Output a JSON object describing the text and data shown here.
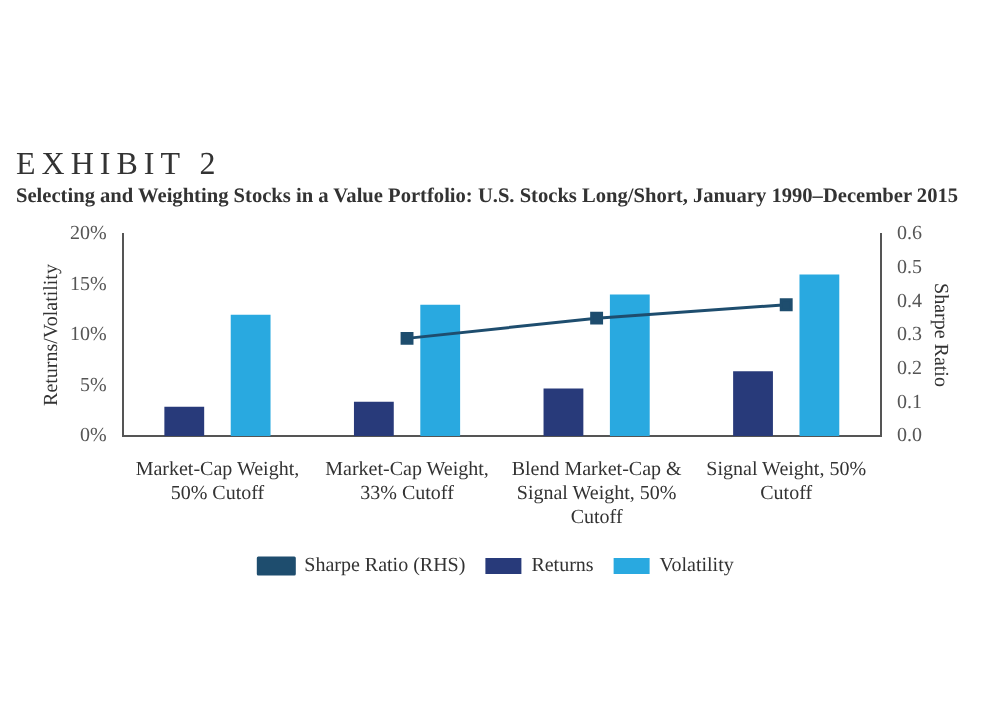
{
  "chart_data": {
    "type": "bar",
    "title": "EXHIBIT 2",
    "subtitle": "Selecting and Weighting Stocks in a Value Portfolio: U.S. Stocks Long/Short, January 1990–December 2015",
    "ylabel": "Returns/Volatility",
    "y2label": "Sharpe Ratio",
    "categories": [
      "Market-Cap Weight, 50% Cutoff",
      "Market-Cap Weight, 33% Cutoff",
      "Blend Market-Cap & Signal Weight, 50% Cutoff",
      "Signal Weight, 50% Cutoff"
    ],
    "series": [
      {
        "name": "Returns",
        "color": "#283a7a",
        "values": [
          2.9,
          3.4,
          4.7,
          6.4
        ]
      },
      {
        "name": "Volatility",
        "color": "#29a9e0",
        "values": [
          12,
          13,
          14,
          16
        ]
      },
      {
        "name": "Sharpe Ratio (RHS)",
        "type": "line",
        "axis": "y2",
        "color": "#1e4d6e",
        "marker": "square",
        "values": [
          null,
          0.29,
          0.35,
          0.39
        ]
      }
    ],
    "ylim": [
      0,
      20
    ],
    "yticks": [
      {
        "value": 0,
        "label": "0%"
      },
      {
        "value": 5,
        "label": "5%"
      },
      {
        "value": 10,
        "label": "10%"
      },
      {
        "value": 15,
        "label": "15%"
      },
      {
        "value": 20,
        "label": "20%"
      }
    ],
    "y2lim": [
      0,
      0.6
    ],
    "y2ticks": [
      {
        "value": 0,
        "label": "0.0"
      },
      {
        "value": 0.1,
        "label": "0.1"
      },
      {
        "value": 0.2,
        "label": "0.2"
      },
      {
        "value": 0.3,
        "label": "0.3"
      },
      {
        "value": 0.4,
        "label": "0.4"
      },
      {
        "value": 0.5,
        "label": "0.5"
      },
      {
        "value": 0.6,
        "label": "0.6"
      }
    ],
    "legend": "bottom",
    "grid": false
  }
}
